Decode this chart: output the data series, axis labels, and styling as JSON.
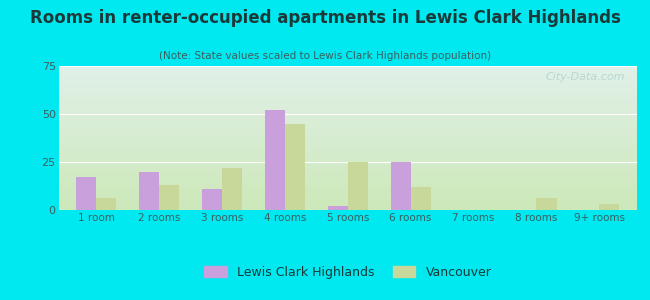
{
  "title_display": "Rooms in renter-occupied apartments in Lewis Clark Highlands",
  "subtitle": "(Note: State values scaled to Lewis Clark Highlands population)",
  "categories": [
    "1 room",
    "2 rooms",
    "3 rooms",
    "4 rooms",
    "5 rooms",
    "6 rooms",
    "7 rooms",
    "8 rooms",
    "9+ rooms"
  ],
  "lewis_clark": [
    17,
    20,
    11,
    52,
    2,
    25,
    0,
    0,
    0
  ],
  "vancouver": [
    6,
    13,
    22,
    45,
    25,
    12,
    0,
    6,
    3
  ],
  "lewis_clark_color": "#c9a0dc",
  "vancouver_color": "#c8d89a",
  "background_outer": "#00e8f0",
  "background_inner_top_left": "#deeee8",
  "background_inner_top_right": "#e8f5f0",
  "background_inner_bottom_left": "#d4e8c0",
  "background_inner_bottom_right": "#d8ecd4",
  "ylim": [
    0,
    75
  ],
  "yticks": [
    0,
    25,
    50,
    75
  ],
  "bar_width": 0.32,
  "watermark": "City-Data.com",
  "legend_label1": "Lewis Clark Highlands",
  "legend_label2": "Vancouver",
  "title_color": "#1a3a3a",
  "subtitle_color": "#3a6060",
  "tick_color": "#3a6060",
  "grid_color": "#ffffff"
}
